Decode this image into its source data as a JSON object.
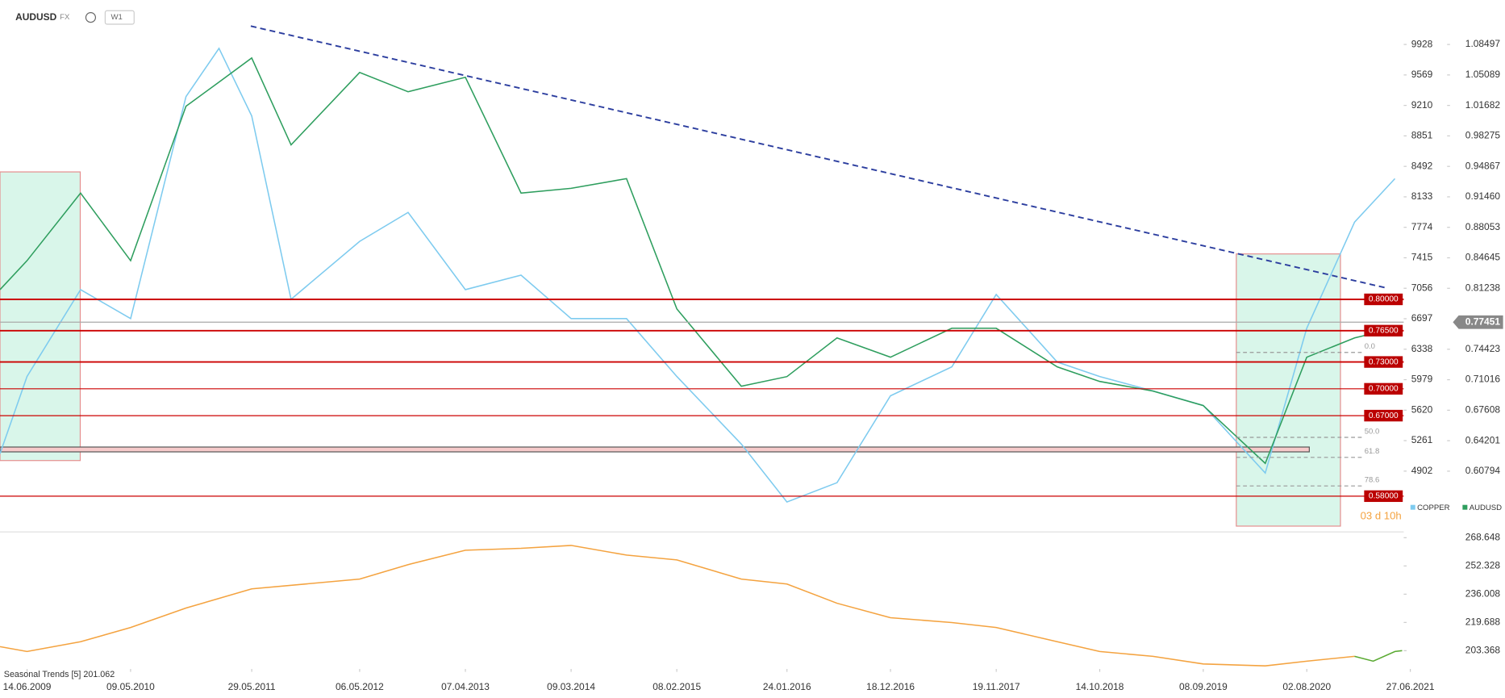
{
  "header": {
    "symbol": "AUDUSD",
    "market": "FX",
    "timeframe": "W1"
  },
  "chart_data": [
    {
      "type": "line",
      "xlim": [
        "20.03.2009",
        "06.06.2021"
      ],
      "ylim": [
        4197,
        10451
      ],
      "yticks": [
        9928,
        9569,
        9210,
        8851,
        8492,
        8133,
        7774,
        7415,
        7056,
        6697,
        6338,
        5979,
        5620,
        5261,
        4902
      ],
      "y2lim": [
        0.5411,
        1.1346
      ],
      "y2ticks": [
        1.08497,
        1.05089,
        1.01682,
        0.98275,
        0.94867,
        {
          "value": 0.9146,
          "label": "0.91460"
        },
        0.88053,
        0.84645,
        0.81238,
        0.74423,
        0.71016,
        0.67608,
        0.64201,
        0.60794
      ],
      "series": [
        {
          "name": "COPPER",
          "color": "#7ecbef",
          "x": [
            "20.03.2009",
            "14.06.2009",
            "01.12.2009",
            "09.05.2010",
            "01.11.2010",
            "14.02.2011",
            "29.05.2011",
            "01.10.2011",
            "06.05.2012",
            "07.10.2012",
            "07.04.2013",
            "01.10.2013",
            "09.03.2014",
            "01.09.2014",
            "08.02.2015",
            "01.09.2015",
            "24.01.2016",
            "01.07.2016",
            "18.12.2016",
            "01.07.2017",
            "19.11.2017",
            "01.06.2018",
            "14.10.2018",
            "01.04.2019",
            "08.09.2019",
            "23.03.2020",
            "02.08.2020",
            "01.01.2021",
            "09.05.2021"
          ],
          "values": [
            5107,
            6016,
            7040,
            6699,
            9314,
            9883,
            9087,
            6926,
            7608,
            7949,
            7040,
            7210,
            6699,
            6699,
            6016,
            5220,
            4538,
            4766,
            5789,
            6130,
            6983,
            6187,
            6016,
            5846,
            5675,
            4879,
            6585,
            7836,
            8347
          ]
        },
        {
          "name": "AUDUSD",
          "color": "#2e9e5e",
          "axis": "y2",
          "x": [
            "20.03.2009",
            "14.06.2009",
            "01.12.2009",
            "09.05.2010",
            "01.11.2010",
            "14.02.2011",
            "29.05.2011",
            "01.10.2011",
            "06.05.2012",
            "07.10.2012",
            "07.04.2013",
            "01.10.2013",
            "09.03.2014",
            "01.09.2014",
            "08.02.2015",
            "01.09.2015",
            "24.01.2016",
            "01.07.2016",
            "18.12.2016",
            "01.07.2017",
            "19.11.2017",
            "01.06.2018",
            "14.10.2018",
            "01.04.2019",
            "08.09.2019",
            "23.03.2020",
            "02.08.2020",
            "01.01.2021",
            "09.05.2021"
          ],
          "values": [
            0.8109,
            0.8432,
            0.9188,
            0.8432,
            1.0159,
            1.0429,
            1.0699,
            0.9727,
            1.0537,
            1.0321,
            1.0483,
            0.9188,
            0.9242,
            0.935,
            0.7893,
            0.7029,
            0.7137,
            0.7569,
            0.7353,
            0.7677,
            0.7677,
            0.7245,
            0.7083,
            0.6975,
            0.6813,
            0.6166,
            0.7353,
            0.7569,
            0.7677
          ]
        }
      ],
      "levels": [
        {
          "value": 0.8,
          "label": "0.80000"
        },
        {
          "value": 0.765,
          "label": "0.76500"
        },
        {
          "value": 0.73,
          "label": "0.73000"
        },
        {
          "value": 0.7,
          "label": "0.70000"
        },
        {
          "value": 0.67,
          "label": "0.67000"
        },
        {
          "value": 0.58,
          "label": "0.58000"
        }
      ],
      "current_price": 0.77451,
      "trendline": {
        "x": [
          "26.05.2011",
          "10.04.2021"
        ],
        "values": [
          1.1055,
          0.8129
        ],
        "color": "#2c3e9f"
      },
      "zones": [
        {
          "x": [
            "20.03.2009",
            "30.11.2009"
          ],
          "values": [
            0.9425,
            0.6198
          ]
        },
        {
          "x": [
            "22.12.2019",
            "17.11.2020"
          ],
          "values": [
            0.8508,
            0.5465
          ]
        }
      ],
      "band": {
        "x": [
          "20.03.2009",
          "10.08.2020"
        ],
        "values": [
          0.6349,
          0.6295
        ]
      },
      "fib": {
        "x": [
          "22.12.2019",
          "26.01.2021"
        ],
        "high": 0.7407,
        "low": 0.5508,
        "levels": [
          {
            "value": 0,
            "label": "0.0"
          },
          {
            "value": 50,
            "label": "50.0"
          },
          {
            "value": 61.8,
            "label": "61.8"
          },
          {
            "value": 78.6,
            "label": "78.6"
          }
        ]
      },
      "countdown": "03 d 10h"
    },
    {
      "type": "line",
      "label": "Seasonal Trends [5] 201.062",
      "xlim": [
        "20.03.2009",
        "06.06.2021"
      ],
      "xticks": [
        "14.06.2009",
        "09.05.2010",
        "29.05.2011",
        "06.05.2012",
        "07.04.2013",
        "09.03.2014",
        "08.02.2015",
        "24.01.2016",
        "18.12.2016",
        "19.11.2017",
        "14.10.2018",
        "08.09.2019",
        "02.08.2020",
        "27.06.2021"
      ],
      "ylim": [
        192.8,
        271.43
      ],
      "yticks": [
        268.648,
        252.328,
        236.008,
        219.688,
        203.368
      ],
      "series": [
        {
          "color": "#f4a340",
          "x": [
            "20.03.2009",
            "14.06.2009",
            "01.12.2009",
            "09.05.2010",
            "01.11.2010",
            "29.05.2011",
            "06.05.2012",
            "07.10.2012",
            "07.04.2013",
            "01.10.2013",
            "09.03.2014",
            "01.09.2014",
            "08.02.2015",
            "01.09.2015",
            "24.01.2016",
            "01.07.2016",
            "18.12.2016",
            "01.07.2017",
            "19.11.2017",
            "01.06.2018",
            "14.10.2018",
            "01.04.2019",
            "08.09.2019",
            "23.03.2020",
            "02.08.2020",
            "01.01.2021"
          ],
          "values": [
            205.7,
            202.9,
            208.5,
            216.8,
            228.0,
            239.1,
            244.7,
            253.1,
            261.4,
            262.5,
            264.2,
            258.6,
            255.8,
            244.7,
            241.9,
            230.8,
            222.4,
            219.6,
            216.8,
            208.5,
            202.9,
            200.1,
            195.7,
            194.6,
            197.3,
            200.1
          ]
        },
        {
          "color": "#5aaa32",
          "x": [
            "01.01.2021",
            "01.03.2021",
            "09.05.2021",
            "01.06.2021"
          ],
          "values": [
            200.1,
            197.3,
            202.9,
            203.4
          ]
        }
      ]
    }
  ]
}
